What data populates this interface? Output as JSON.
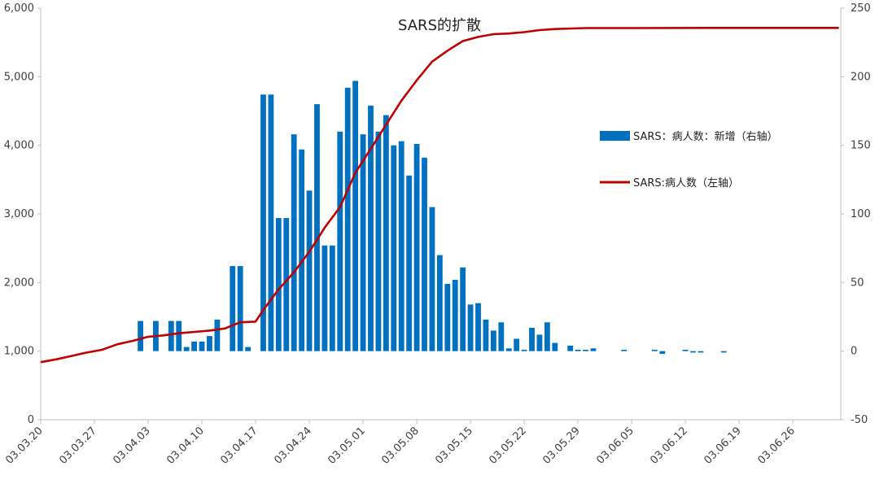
{
  "chart_data": {
    "type": "bar+line",
    "title": "SARS的扩散",
    "legend_position": "right",
    "grid": false,
    "left_axis": {
      "min": 0,
      "max": 6000,
      "ticks": [
        "0",
        "1,000",
        "2,000",
        "3,000",
        "4,000",
        "5,000",
        "6,000"
      ]
    },
    "right_axis": {
      "min": -50,
      "max": 250,
      "ticks": [
        "-50",
        "0",
        "50",
        "100",
        "150",
        "200",
        "250"
      ]
    },
    "x_ticks": [
      "03.03.20",
      "03.03.27",
      "03.04.03",
      "03.04.10",
      "03.04.17",
      "03.04.24",
      "03.05.01",
      "03.05.08",
      "03.05.15",
      "03.05.22",
      "03.05.29",
      "03.06.05",
      "03.06.12",
      "03.06.19",
      "03.06.26"
    ],
    "series": [
      {
        "name": "SARS：病人数：新增（右轴）",
        "type": "bar",
        "axis": "right",
        "color": "#0070C0",
        "points": [
          [
            "03.04.02",
            22
          ],
          [
            "03.04.04",
            22
          ],
          [
            "03.04.06",
            22
          ],
          [
            "03.04.07",
            22
          ],
          [
            "03.04.08",
            3
          ],
          [
            "03.04.09",
            7
          ],
          [
            "03.04.10",
            7
          ],
          [
            "03.04.11",
            11
          ],
          [
            "03.04.12",
            23
          ],
          [
            "03.04.14",
            62
          ],
          [
            "03.04.15",
            62
          ],
          [
            "03.04.16",
            3
          ],
          [
            "03.04.18",
            187
          ],
          [
            "03.04.19",
            187
          ],
          [
            "03.04.20",
            97
          ],
          [
            "03.04.21",
            97
          ],
          [
            "03.04.22",
            158
          ],
          [
            "03.04.23",
            147
          ],
          [
            "03.04.24",
            117
          ],
          [
            "03.04.25",
            180
          ],
          [
            "03.04.26",
            77
          ],
          [
            "03.04.27",
            77
          ],
          [
            "03.04.28",
            160
          ],
          [
            "03.04.29",
            192
          ],
          [
            "03.04.30",
            197
          ],
          [
            "03.05.01",
            158
          ],
          [
            "03.05.02",
            179
          ],
          [
            "03.05.03",
            160
          ],
          [
            "03.05.04",
            172
          ],
          [
            "03.05.05",
            150
          ],
          [
            "03.05.06",
            153
          ],
          [
            "03.05.07",
            128
          ],
          [
            "03.05.08",
            151
          ],
          [
            "03.05.09",
            141
          ],
          [
            "03.05.10",
            105
          ],
          [
            "03.05.11",
            70
          ],
          [
            "03.05.12",
            49
          ],
          [
            "03.05.13",
            52
          ],
          [
            "03.05.14",
            61
          ],
          [
            "03.05.15",
            34
          ],
          [
            "03.05.16",
            35
          ],
          [
            "03.05.17",
            23
          ],
          [
            "03.05.18",
            15
          ],
          [
            "03.05.19",
            21
          ],
          [
            "03.05.20",
            2
          ],
          [
            "03.05.21",
            9
          ],
          [
            "03.05.22",
            1
          ],
          [
            "03.05.23",
            17
          ],
          [
            "03.05.24",
            12
          ],
          [
            "03.05.25",
            21
          ],
          [
            "03.05.26",
            6
          ],
          [
            "03.05.28",
            4
          ],
          [
            "03.05.29",
            1
          ],
          [
            "03.05.30",
            1
          ],
          [
            "03.05.31",
            2
          ],
          [
            "03.06.04",
            1
          ],
          [
            "03.06.08",
            1
          ],
          [
            "03.06.09",
            -2
          ],
          [
            "03.06.12",
            1
          ],
          [
            "03.06.13",
            -1
          ],
          [
            "03.06.14",
            -1
          ],
          [
            "03.06.17",
            -1
          ]
        ]
      },
      {
        "name": "SARS:病人数（左轴）",
        "type": "line",
        "axis": "left",
        "color": "#C00000",
        "points": [
          [
            "03.03.20",
            840
          ],
          [
            "03.03.22",
            880
          ],
          [
            "03.03.24",
            930
          ],
          [
            "03.03.26",
            980
          ],
          [
            "03.03.28",
            1020
          ],
          [
            "03.03.30",
            1100
          ],
          [
            "03.04.01",
            1150
          ],
          [
            "03.04.03",
            1210
          ],
          [
            "03.04.05",
            1230
          ],
          [
            "03.04.07",
            1260
          ],
          [
            "03.04.09",
            1280
          ],
          [
            "03.04.11",
            1300
          ],
          [
            "03.04.13",
            1330
          ],
          [
            "03.04.15",
            1420
          ],
          [
            "03.04.17",
            1430
          ],
          [
            "03.04.18",
            1600
          ],
          [
            "03.04.20",
            1900
          ],
          [
            "03.04.22",
            2150
          ],
          [
            "03.04.24",
            2450
          ],
          [
            "03.04.26",
            2800
          ],
          [
            "03.04.28",
            3100
          ],
          [
            "03.04.30",
            3600
          ],
          [
            "03.05.02",
            3950
          ],
          [
            "03.05.04",
            4300
          ],
          [
            "03.05.06",
            4650
          ],
          [
            "03.05.08",
            4950
          ],
          [
            "03.05.10",
            5220
          ],
          [
            "03.05.12",
            5380
          ],
          [
            "03.05.14",
            5520
          ],
          [
            "03.05.16",
            5580
          ],
          [
            "03.05.18",
            5620
          ],
          [
            "03.05.20",
            5630
          ],
          [
            "03.05.22",
            5650
          ],
          [
            "03.05.24",
            5680
          ],
          [
            "03.05.26",
            5695
          ],
          [
            "03.05.30",
            5710
          ],
          [
            "03.06.05",
            5710
          ],
          [
            "03.06.15",
            5712
          ],
          [
            "03.07.02",
            5712
          ]
        ]
      }
    ]
  }
}
